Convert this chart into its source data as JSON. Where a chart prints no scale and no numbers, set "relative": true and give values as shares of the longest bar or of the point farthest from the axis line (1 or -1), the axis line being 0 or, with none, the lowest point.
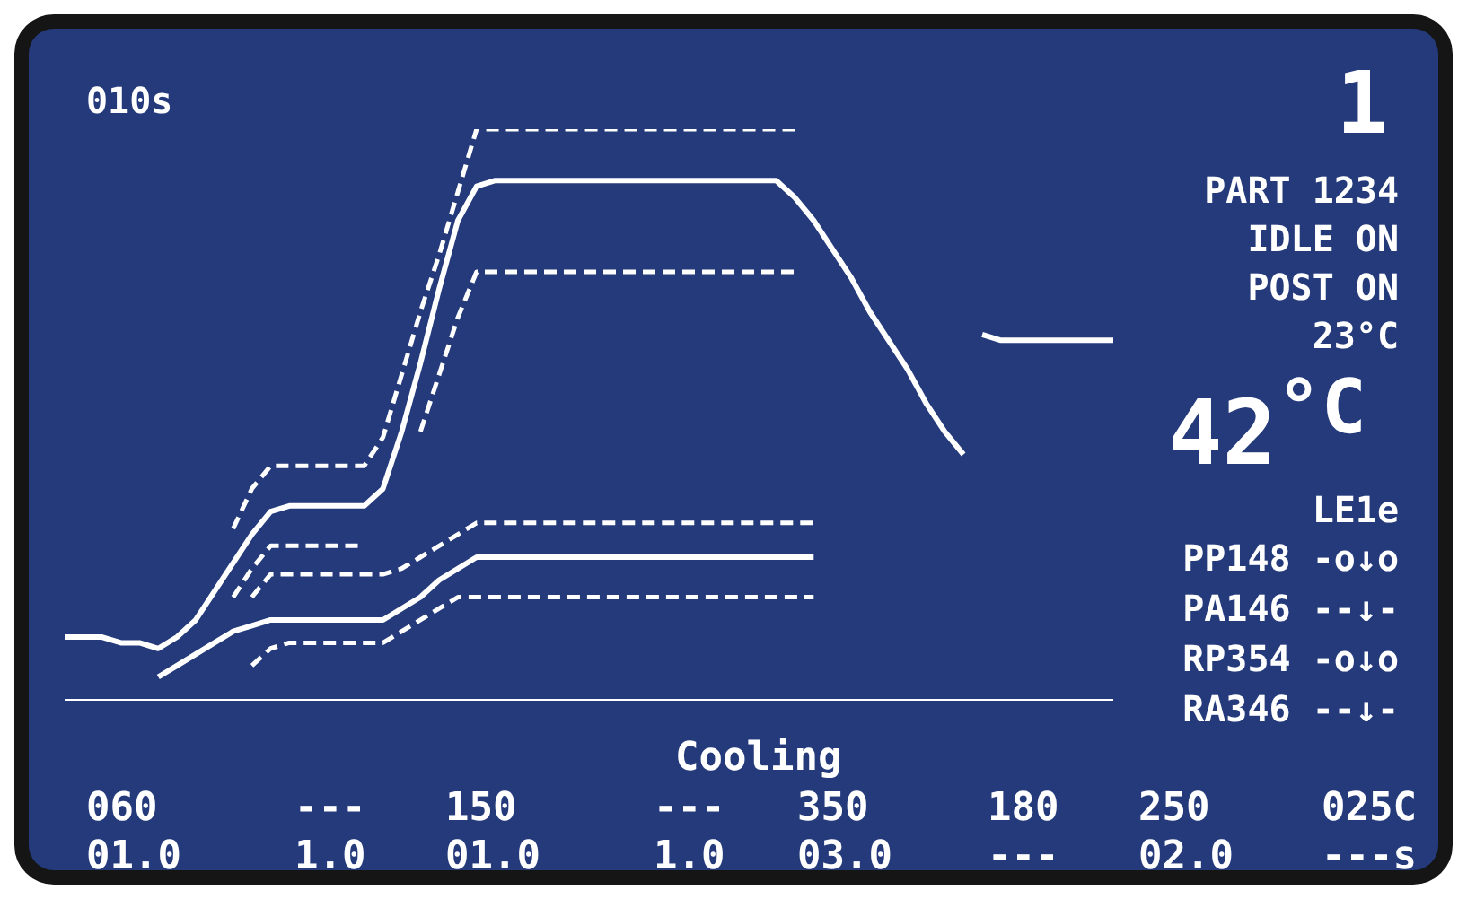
{
  "chart_data": {
    "type": "line",
    "relative": true,
    "tick_labels": false,
    "marker": "none",
    "categories": [
      null,
      null,
      null,
      null,
      null,
      null,
      null,
      null,
      null,
      null,
      null,
      null,
      null,
      null,
      null,
      null,
      null,
      null,
      null,
      null,
      null,
      null,
      null,
      null,
      null,
      null,
      null,
      null,
      null,
      null,
      null,
      null,
      null,
      null,
      null,
      null,
      null,
      null,
      null,
      null,
      null,
      null,
      null,
      null,
      null,
      null,
      null,
      null,
      null,
      null,
      null,
      null,
      null,
      null,
      null,
      null,
      null
    ],
    "series": [
      {
        "color": "#ffffff",
        "line_style": "solid",
        "values": [
          0.11,
          0.11,
          0.11,
          0.1,
          0.1,
          0.09,
          0.11,
          0.14,
          0.19,
          0.24,
          0.29,
          0.33,
          0.34,
          0.34,
          0.34,
          0.34,
          0.34,
          0.37,
          0.47,
          0.59,
          0.72,
          0.84,
          0.9,
          0.91,
          0.91,
          0.91,
          0.91,
          0.91,
          0.91,
          0.91,
          0.91,
          0.91,
          0.91,
          0.91,
          0.91,
          0.91,
          0.91,
          0.91,
          0.91,
          0.88,
          0.84,
          0.79,
          0.74,
          0.68,
          0.63,
          0.58,
          0.52,
          0.47,
          0.43,
          null,
          null,
          null,
          null,
          null,
          null,
          null,
          null
        ]
      },
      {
        "color": "#ffffff",
        "line_style": "solid",
        "values": [
          null,
          null,
          null,
          null,
          null,
          null,
          null,
          null,
          null,
          null,
          null,
          null,
          null,
          null,
          null,
          null,
          null,
          null,
          null,
          null,
          null,
          null,
          null,
          null,
          null,
          null,
          null,
          null,
          null,
          null,
          null,
          null,
          null,
          null,
          null,
          null,
          null,
          null,
          null,
          null,
          null,
          null,
          null,
          null,
          null,
          null,
          null,
          null,
          null,
          0.64,
          0.63,
          0.63,
          0.63,
          0.63,
          0.63,
          0.63,
          0.63
        ]
      },
      {
        "color": "#ffffff",
        "line_style": "dashed",
        "values": [
          null,
          null,
          null,
          null,
          null,
          null,
          null,
          null,
          null,
          0.3,
          0.37,
          0.41,
          0.41,
          0.41,
          0.41,
          0.41,
          0.41,
          0.46,
          0.57,
          0.68,
          0.78,
          0.89,
          1,
          1,
          1,
          1,
          1,
          1,
          1,
          1,
          1,
          1,
          1,
          1,
          1,
          1,
          1,
          1,
          1,
          1,
          null,
          null,
          null,
          null,
          null,
          null,
          null,
          null,
          null,
          null,
          null,
          null,
          null,
          null,
          null,
          null,
          null
        ]
      },
      {
        "color": "#ffffff",
        "line_style": "dashed",
        "values": [
          null,
          null,
          null,
          null,
          null,
          null,
          null,
          null,
          null,
          0.18,
          0.23,
          0.27,
          0.27,
          0.27,
          0.27,
          0.27,
          0.27,
          null,
          null,
          0.47,
          0.57,
          0.67,
          0.75,
          0.75,
          0.75,
          0.75,
          0.75,
          0.75,
          0.75,
          0.75,
          0.75,
          0.75,
          0.75,
          0.75,
          0.75,
          0.75,
          0.75,
          0.75,
          0.75,
          0.75,
          null,
          null,
          null,
          null,
          null,
          null,
          null,
          null,
          null,
          null,
          null,
          null,
          null,
          null,
          null,
          null,
          null
        ]
      },
      {
        "color": "#ffffff",
        "line_style": "dashed",
        "values": [
          null,
          null,
          null,
          null,
          null,
          null,
          null,
          null,
          null,
          null,
          0.18,
          0.22,
          0.22,
          0.22,
          0.22,
          0.22,
          0.22,
          0.22,
          0.23,
          0.25,
          0.27,
          0.29,
          0.31,
          0.31,
          0.31,
          0.31,
          0.31,
          0.31,
          0.31,
          0.31,
          0.31,
          0.31,
          0.31,
          0.31,
          0.31,
          0.31,
          0.31,
          0.31,
          0.31,
          0.31,
          0.31,
          null,
          null,
          null,
          null,
          null,
          null,
          null,
          null,
          null,
          null,
          null,
          null,
          null,
          null,
          null,
          null
        ]
      },
      {
        "color": "#ffffff",
        "line_style": "solid",
        "values": [
          null,
          null,
          null,
          null,
          null,
          0.04,
          0.06,
          0.08,
          0.1,
          0.12,
          0.13,
          0.14,
          0.14,
          0.14,
          0.14,
          0.14,
          0.14,
          0.14,
          0.16,
          0.18,
          0.21,
          0.23,
          0.25,
          0.25,
          0.25,
          0.25,
          0.25,
          0.25,
          0.25,
          0.25,
          0.25,
          0.25,
          0.25,
          0.25,
          0.25,
          0.25,
          0.25,
          0.25,
          0.25,
          0.25,
          0.25,
          null,
          null,
          null,
          null,
          null,
          null,
          null,
          null,
          null,
          null,
          null,
          null,
          null,
          null,
          null,
          null
        ]
      },
      {
        "color": "#ffffff",
        "line_style": "dashed",
        "values": [
          null,
          null,
          null,
          null,
          null,
          null,
          null,
          null,
          null,
          null,
          0.06,
          0.09,
          0.1,
          0.1,
          0.1,
          0.1,
          0.1,
          0.1,
          0.12,
          0.14,
          0.16,
          0.18,
          0.18,
          0.18,
          0.18,
          0.18,
          0.18,
          0.18,
          0.18,
          0.18,
          0.18,
          0.18,
          0.18,
          0.18,
          0.18,
          0.18,
          0.18,
          0.18,
          0.18,
          0.18,
          0.18,
          null,
          null,
          null,
          null,
          null,
          null,
          null,
          null,
          null,
          null,
          null,
          null,
          null,
          null,
          null,
          null
        ]
      }
    ],
    "annotations": [
      "010s",
      "1",
      "PART 1234",
      "IDLE ON",
      "POST ON",
      "23°C",
      "42$^{°C}$",
      "LE1e",
      "PP148 -o↓o",
      "PA146 --↓-",
      "RP354 -o↓o",
      "RA346 --↓-",
      "Cooling",
      "060",
      "---",
      "150",
      "---",
      "350",
      "180",
      "250",
      "025C",
      "01.0",
      "1.0",
      "01.0",
      "1.0",
      "03.0",
      "---",
      "02.0",
      "---s"
    ]
  }
}
